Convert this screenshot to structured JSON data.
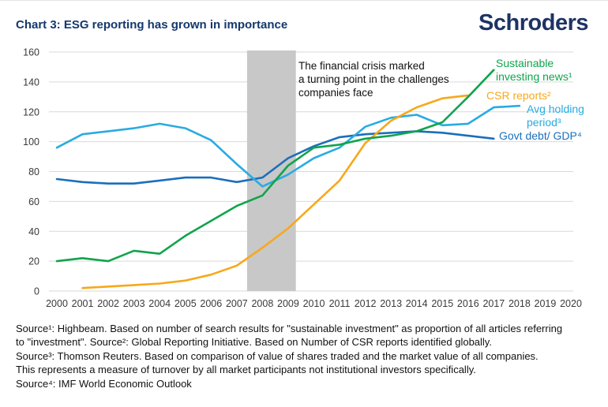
{
  "header": {
    "title": "Chart 3: ESG reporting has grown in importance",
    "logo": "Schroders"
  },
  "chart_data": {
    "type": "line",
    "title": "Chart 3: ESG reporting has grown in importance",
    "xlabel": "",
    "ylabel": "",
    "ylim": [
      0,
      160
    ],
    "y_ticks": [
      0,
      20,
      40,
      60,
      80,
      100,
      120,
      140,
      160
    ],
    "x_ticks": [
      2000,
      2001,
      2002,
      2003,
      2004,
      2005,
      2006,
      2007,
      2008,
      2009,
      2010,
      2011,
      2012,
      2013,
      2014,
      2015,
      2016,
      2017,
      2018,
      2019,
      2020
    ],
    "grid": "horizontal light-gray gridlines at every 20 units",
    "legend_position": "labels placed at right end of each line",
    "grid_color": "#D9D9D9",
    "crisis_band": {
      "x_start": 2007.4,
      "x_end": 2009.3,
      "color": "#C8C8C8"
    },
    "annotation": {
      "line1": "The financial crisis marked",
      "line2": "a turning point in the challenges",
      "line3": "companies face"
    },
    "series": [
      {
        "name": "Govt debt/ GDP⁴",
        "color": "#1B6FBB",
        "start_year": 2000,
        "values": [
          75,
          73,
          72,
          72,
          74,
          76,
          76,
          73,
          76,
          89,
          97,
          103,
          105,
          106,
          107,
          106,
          104,
          102
        ]
      },
      {
        "name": "Avg holding period³",
        "color": "#29ABE2",
        "start_year": 2000,
        "values": [
          96,
          105,
          107,
          109,
          112,
          109,
          101,
          85,
          70,
          78,
          89,
          96,
          110,
          116,
          118,
          111,
          112,
          123,
          124
        ]
      },
      {
        "name": "CSR reports²",
        "color": "#F7A81B",
        "start_year": 2001,
        "values": [
          2,
          3,
          4,
          5,
          7,
          11,
          17,
          29,
          42,
          58,
          74,
          99,
          114,
          123,
          129,
          131
        ]
      },
      {
        "name": "Sustainable investing news¹",
        "color": "#10A44C",
        "start_year": 2000,
        "values": [
          20,
          22,
          20,
          27,
          25,
          37,
          47,
          57,
          64,
          84,
          96,
          98,
          102,
          104,
          107,
          113,
          130,
          148
        ]
      }
    ]
  },
  "footer": {
    "lines": [
      "Source¹:  Highbeam. Based on number of search results for \"sustainable investment\" as proportion of all articles referring",
      "to \"investment\". Source²: Global Reporting Initiative. Based on Number of CSR reports identified globally.",
      "Source³: Thomson Reuters. Based on comparison of value of shares traded and the market value of all companies.",
      "This represents a measure of turnover by all market participants not institutional investors specifically.",
      "Source⁴:  IMF World Economic Outlook"
    ]
  }
}
